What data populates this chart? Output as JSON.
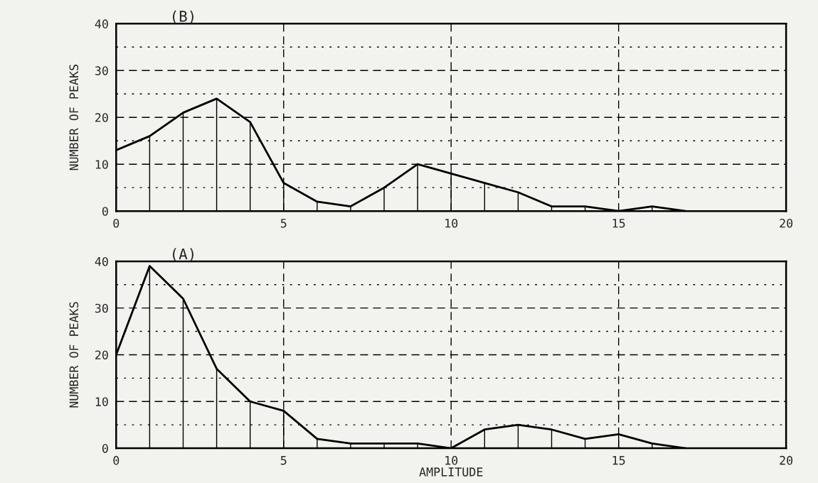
{
  "chart_data": [
    {
      "type": "line",
      "title": "(B)",
      "ylabel": "NUMBER OF PEAKS",
      "x": [
        0,
        1,
        2,
        3,
        4,
        5,
        6,
        7,
        8,
        9,
        10,
        11,
        12,
        13,
        14,
        15,
        16,
        17
      ],
      "series": [
        {
          "color": "#000000",
          "values": [
            13,
            16,
            21,
            24,
            19,
            6,
            2,
            1,
            5,
            10,
            8,
            6,
            4,
            1,
            1,
            0,
            1,
            0
          ]
        },
        {
          "type": "bar",
          "color": "#000000",
          "values": [
            null,
            16,
            21,
            24,
            19,
            6,
            2,
            1,
            5,
            10,
            8,
            6,
            4,
            1,
            1,
            0,
            1,
            0
          ]
        }
      ],
      "xlim": [
        0,
        20
      ],
      "xticks": [
        0,
        5,
        10,
        15,
        20
      ],
      "ylim": [
        0,
        40
      ],
      "yticks": [
        0,
        {
          "value": 5,
          "label": null
        },
        10,
        {
          "value": 15,
          "label": null
        },
        20,
        {
          "value": 25,
          "label": null
        },
        30,
        {
          "value": 35,
          "label": null
        },
        40
      ],
      "grid": true,
      "marker": "none",
      "line_style": "solid"
    },
    {
      "type": "line",
      "title": "(A)",
      "ylabel": "NUMBER OF PEAKS",
      "xlabel": "AMPLITUDE",
      "x": [
        0,
        1,
        2,
        3,
        4,
        5,
        6,
        7,
        8,
        9,
        10,
        11,
        12,
        13,
        14,
        15,
        16,
        17
      ],
      "series": [
        {
          "color": "#000000",
          "values": [
            20,
            39,
            32,
            17,
            10,
            8,
            2,
            1,
            1,
            1,
            0,
            4,
            5,
            4,
            2,
            3,
            1,
            0
          ]
        },
        {
          "type": "bar",
          "color": "#000000",
          "values": [
            null,
            39,
            32,
            17,
            10,
            8,
            2,
            1,
            1,
            1,
            0,
            4,
            5,
            4,
            2,
            3,
            1,
            0
          ]
        }
      ],
      "xlim": [
        0,
        20
      ],
      "xticks": [
        0,
        5,
        10,
        15,
        20
      ],
      "ylim": [
        0,
        40
      ],
      "yticks": [
        0,
        {
          "value": 5,
          "label": null
        },
        10,
        {
          "value": 15,
          "label": null
        },
        20,
        {
          "value": 25,
          "label": null
        },
        30,
        {
          "value": 35,
          "label": null
        },
        40
      ],
      "grid": true,
      "marker": "none",
      "line_style": "solid"
    }
  ]
}
